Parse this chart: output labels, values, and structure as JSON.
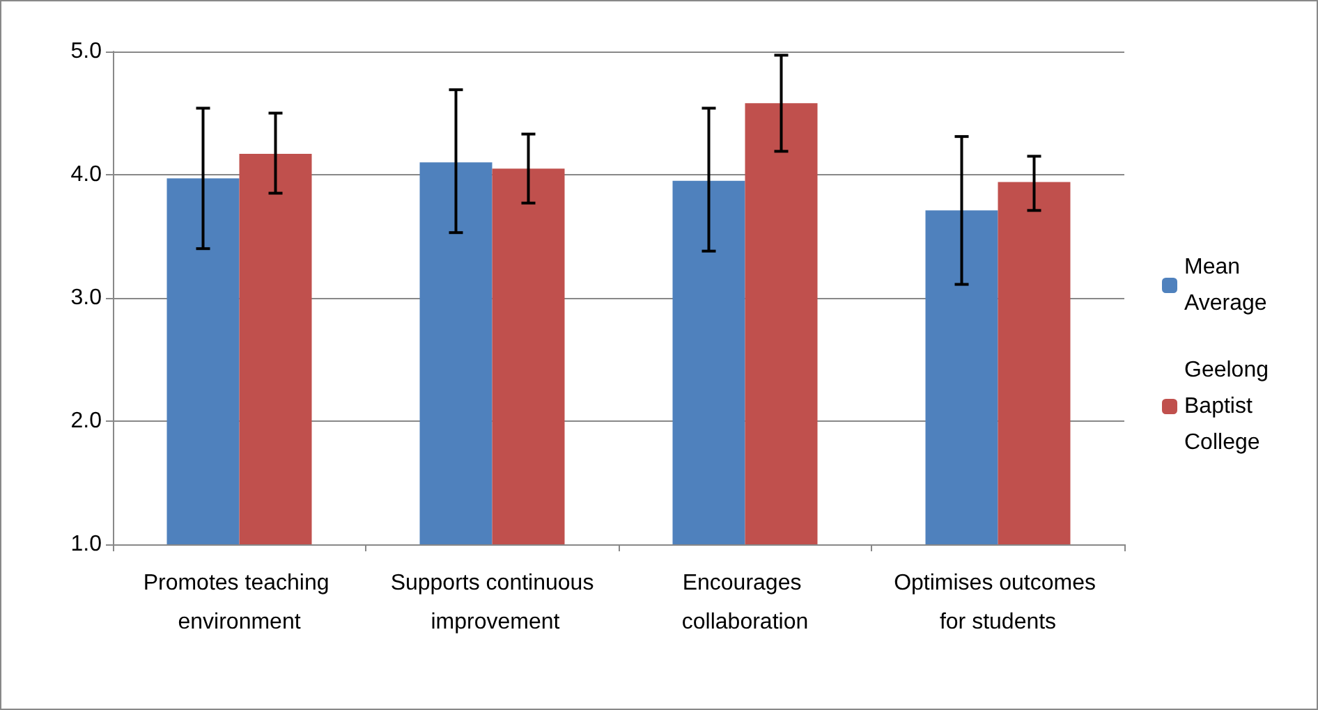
{
  "chart_data": {
    "type": "bar",
    "categories": [
      "Promotes teaching environment",
      "Supports continuous improvement",
      "Encourages collaboration",
      "Optimises outcomes for students"
    ],
    "series": [
      {
        "name": "Mean Average",
        "color": "#4f81bd",
        "values": [
          3.97,
          4.1,
          3.95,
          3.71
        ],
        "errors": [
          [
            3.4,
            4.54
          ],
          [
            3.53,
            4.69
          ],
          [
            3.38,
            4.54
          ],
          [
            3.11,
            4.31
          ]
        ]
      },
      {
        "name": "Geelong Baptist College",
        "color": "#c0504d",
        "values": [
          4.17,
          4.05,
          4.58,
          3.94
        ],
        "errors": [
          [
            3.85,
            4.5
          ],
          [
            3.77,
            4.33
          ],
          [
            4.19,
            4.97
          ],
          [
            3.71,
            4.15
          ]
        ]
      }
    ],
    "ylim": [
      1.0,
      5.0
    ],
    "yticks": [
      {
        "value": 1,
        "label": "1.0"
      },
      {
        "value": 2,
        "label": "2.0"
      },
      {
        "value": 3,
        "label": "3.0"
      },
      {
        "value": 4,
        "label": "4.0"
      },
      {
        "value": 5,
        "label": "5.0"
      }
    ],
    "grid": "y",
    "legend": "right"
  }
}
